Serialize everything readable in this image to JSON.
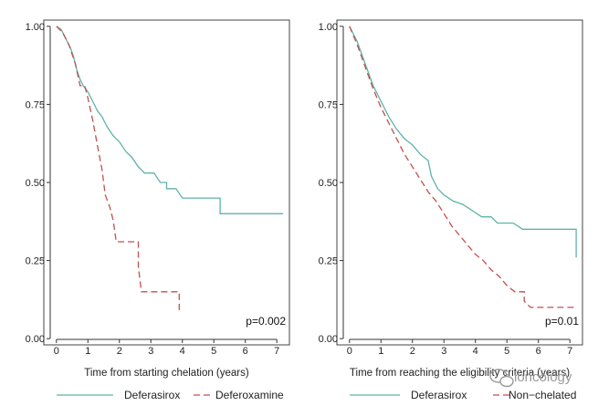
{
  "colors": {
    "deferasirox": "#5fb3a8",
    "comparator": "#c0504d",
    "axis": "#333333",
    "watermark": "#9a9a9a"
  },
  "watermark": {
    "text": "ioncology",
    "icon": "wechat-bubble-icon"
  },
  "chart_data": [
    {
      "type": "line",
      "xlabel": "Time from starting chelation (years)",
      "ylabel": "",
      "xlim": [
        -0.4,
        7.4
      ],
      "ylim": [
        -0.02,
        1.02
      ],
      "xticks": [
        0,
        1,
        2,
        3,
        4,
        5,
        6,
        7
      ],
      "yticks": [
        0.0,
        0.25,
        0.5,
        0.75,
        1.0
      ],
      "ytick_labels": [
        "0.00",
        "0.25",
        "0.50",
        "0.75",
        "1.00"
      ],
      "grid": false,
      "annotation": "p=0.002",
      "legend": {
        "placement": "bottom"
      },
      "series": [
        {
          "name": "Deferasirox",
          "style": "solid",
          "points": [
            [
              0,
              1.0
            ],
            [
              0.15,
              0.99
            ],
            [
              0.25,
              0.97
            ],
            [
              0.35,
              0.95
            ],
            [
              0.45,
              0.93
            ],
            [
              0.55,
              0.9
            ],
            [
              0.65,
              0.86
            ],
            [
              0.75,
              0.83
            ],
            [
              0.85,
              0.81
            ],
            [
              1.0,
              0.79
            ],
            [
              1.15,
              0.76
            ],
            [
              1.3,
              0.73
            ],
            [
              1.45,
              0.71
            ],
            [
              1.6,
              0.68
            ],
            [
              1.8,
              0.65
            ],
            [
              2.0,
              0.63
            ],
            [
              2.2,
              0.6
            ],
            [
              2.4,
              0.58
            ],
            [
              2.6,
              0.55
            ],
            [
              2.8,
              0.53
            ],
            [
              3.1,
              0.53
            ],
            [
              3.3,
              0.5
            ],
            [
              3.5,
              0.5
            ],
            [
              3.5,
              0.48
            ],
            [
              3.8,
              0.48
            ],
            [
              4.0,
              0.45
            ],
            [
              5.2,
              0.45
            ],
            [
              5.2,
              0.4
            ],
            [
              7.2,
              0.4
            ]
          ]
        },
        {
          "name": "Deferoxamine",
          "style": "dashed",
          "points": [
            [
              0,
              1.0
            ],
            [
              0.2,
              0.98
            ],
            [
              0.4,
              0.94
            ],
            [
              0.6,
              0.88
            ],
            [
              0.75,
              0.81
            ],
            [
              0.9,
              0.81
            ],
            [
              1.0,
              0.77
            ],
            [
              1.15,
              0.7
            ],
            [
              1.3,
              0.62
            ],
            [
              1.45,
              0.54
            ],
            [
              1.55,
              0.46
            ],
            [
              1.7,
              0.42
            ],
            [
              1.8,
              0.38
            ],
            [
              1.9,
              0.31
            ],
            [
              2.6,
              0.31
            ],
            [
              2.6,
              0.23
            ],
            [
              2.7,
              0.15
            ],
            [
              3.9,
              0.15
            ],
            [
              3.9,
              0.08
            ]
          ]
        }
      ]
    },
    {
      "type": "line",
      "xlabel": "Time from reaching the eligibility criteria (years)",
      "ylabel": "",
      "xlim": [
        -0.4,
        7.4
      ],
      "ylim": [
        -0.02,
        1.02
      ],
      "xticks": [
        0,
        1,
        2,
        3,
        4,
        5,
        6,
        7
      ],
      "yticks": [
        0.0,
        0.25,
        0.5,
        0.75,
        1.0
      ],
      "ytick_labels": [
        "0.00",
        "0.25",
        "0.50",
        "0.75",
        "1.00"
      ],
      "grid": false,
      "annotation": "p=0.01",
      "legend": {
        "placement": "bottom"
      },
      "series": [
        {
          "name": "Deferasirox",
          "style": "solid",
          "points": [
            [
              0,
              1.0
            ],
            [
              0.25,
              0.95
            ],
            [
              0.5,
              0.88
            ],
            [
              0.75,
              0.81
            ],
            [
              1.0,
              0.76
            ],
            [
              1.25,
              0.71
            ],
            [
              1.5,
              0.67
            ],
            [
              1.75,
              0.64
            ],
            [
              2.0,
              0.62
            ],
            [
              2.25,
              0.59
            ],
            [
              2.5,
              0.57
            ],
            [
              2.6,
              0.52
            ],
            [
              2.8,
              0.48
            ],
            [
              3.0,
              0.46
            ],
            [
              3.3,
              0.44
            ],
            [
              3.6,
              0.43
            ],
            [
              3.9,
              0.41
            ],
            [
              4.2,
              0.39
            ],
            [
              4.5,
              0.39
            ],
            [
              4.7,
              0.37
            ],
            [
              5.2,
              0.37
            ],
            [
              5.5,
              0.35
            ],
            [
              7.2,
              0.35
            ],
            [
              7.2,
              0.26
            ]
          ]
        },
        {
          "name": "Non−chelated",
          "style": "dashed",
          "points": [
            [
              0,
              1.0
            ],
            [
              0.25,
              0.94
            ],
            [
              0.5,
              0.87
            ],
            [
              0.75,
              0.8
            ],
            [
              1.0,
              0.74
            ],
            [
              1.25,
              0.69
            ],
            [
              1.5,
              0.64
            ],
            [
              1.75,
              0.59
            ],
            [
              2.0,
              0.55
            ],
            [
              2.25,
              0.51
            ],
            [
              2.5,
              0.47
            ],
            [
              2.75,
              0.44
            ],
            [
              3.0,
              0.4
            ],
            [
              3.25,
              0.36
            ],
            [
              3.5,
              0.33
            ],
            [
              3.75,
              0.3
            ],
            [
              4.0,
              0.27
            ],
            [
              4.25,
              0.25
            ],
            [
              4.5,
              0.22
            ],
            [
              4.75,
              0.2
            ],
            [
              5.0,
              0.17
            ],
            [
              5.25,
              0.15
            ],
            [
              5.55,
              0.15
            ],
            [
              5.55,
              0.12
            ],
            [
              5.75,
              0.1
            ],
            [
              7.2,
              0.1
            ]
          ]
        }
      ]
    }
  ]
}
